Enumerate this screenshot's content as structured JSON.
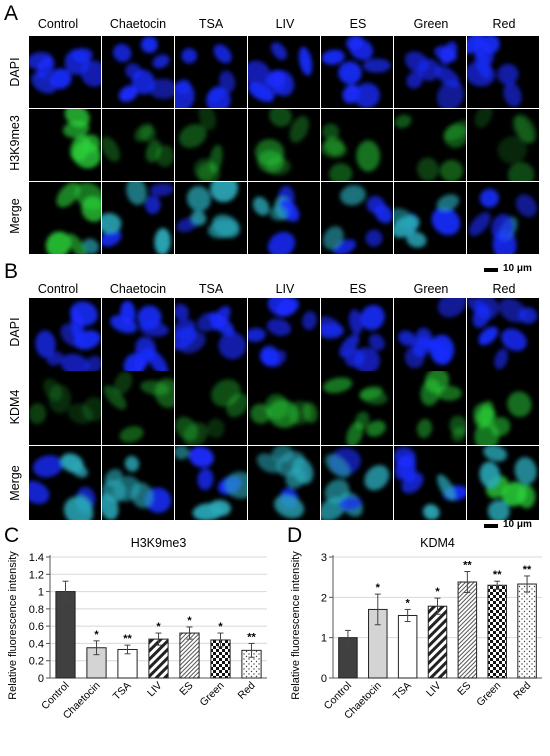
{
  "panels": {
    "A": {
      "letter": "A",
      "columns": [
        "Control",
        "Chaetocin",
        "TSA",
        "LIV",
        "ES",
        "Green",
        "Red"
      ],
      "rows": [
        "DAPI",
        "H3K9me3",
        "Merge"
      ],
      "scale_label": "10 μm"
    },
    "B": {
      "letter": "B",
      "columns": [
        "Control",
        "Chaetocin",
        "TSA",
        "LIV",
        "ES",
        "Green",
        "Red"
      ],
      "rows": [
        "DAPI",
        "KDM4",
        "Merge"
      ],
      "scale_label": "10 μm"
    },
    "C": {
      "letter": "C"
    },
    "D": {
      "letter": "D"
    }
  },
  "colors": {
    "dapi": "#1a2cff",
    "green": "#2bd13a",
    "background": "#000000"
  },
  "chart_data": [
    {
      "type": "bar",
      "title": "H3K9me3",
      "ylabel": "Relative fluorescence intensity",
      "xlabel": "",
      "categories": [
        "Control",
        "Chaetocin",
        "TSA",
        "LIV",
        "ES",
        "Green",
        "Red"
      ],
      "values": [
        1.0,
        0.35,
        0.33,
        0.45,
        0.52,
        0.44,
        0.32
      ],
      "errors": [
        0.12,
        0.08,
        0.05,
        0.07,
        0.07,
        0.08,
        0.08
      ],
      "significance": [
        "",
        "*",
        "**",
        "*",
        "*",
        "*",
        "**"
      ],
      "patterns": [
        "solid-dark",
        "solid-light",
        "white",
        "diagonal",
        "fine-diagonal",
        "checker",
        "dots"
      ],
      "ylim": [
        0,
        1.4
      ],
      "yticks": [
        0,
        0.2,
        0.4,
        0.6,
        0.8,
        1,
        1.2,
        1.4
      ],
      "grid": true
    },
    {
      "type": "bar",
      "title": "KDM4",
      "ylabel": "Relative fluorescence intensity",
      "xlabel": "",
      "categories": [
        "Control",
        "Chaetocin",
        "TSA",
        "LIV",
        "ES",
        "Green",
        "Red"
      ],
      "values": [
        1.0,
        1.7,
        1.55,
        1.78,
        2.38,
        2.3,
        2.33
      ],
      "errors": [
        0.18,
        0.38,
        0.15,
        0.2,
        0.26,
        0.1,
        0.2
      ],
      "significance": [
        "",
        "*",
        "*",
        "*",
        "**",
        "**",
        "**"
      ],
      "patterns": [
        "solid-dark",
        "solid-light",
        "white",
        "diagonal",
        "fine-diagonal",
        "checker",
        "dots"
      ],
      "ylim": [
        0,
        3
      ],
      "yticks": [
        0,
        1,
        2,
        3
      ],
      "grid": true
    }
  ]
}
